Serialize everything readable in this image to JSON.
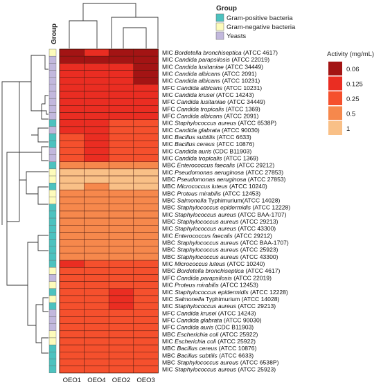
{
  "chart_data": {
    "type": "heatmap",
    "title": "",
    "columns": [
      "OEO1",
      "OEO4",
      "OEO2",
      "OEO3"
    ],
    "group_header": "Group",
    "groups": [
      {
        "name": "Gram-positive bacteria",
        "color": "#4dc2bf"
      },
      {
        "name": "Gram-negative bacteria",
        "color": "#fdfbbb"
      },
      {
        "name": "Yeasts",
        "color": "#c2b8dd"
      }
    ],
    "legend": {
      "title": "Activity (mg/mL)",
      "levels": [
        {
          "label": "0.06",
          "value": 0.06,
          "color": "#a31414"
        },
        {
          "label": "0.125",
          "value": 0.125,
          "color": "#ea2d22"
        },
        {
          "label": "0.25",
          "value": 0.25,
          "color": "#f5502d"
        },
        {
          "label": "0.5",
          "value": 0.5,
          "color": "#f6884c"
        },
        {
          "label": "1",
          "value": 1,
          "color": "#f9c087"
        }
      ]
    },
    "rows": [
      {
        "prefix": "MIC",
        "species": "Bordetella bronchiseptica",
        "strain": "(ATCC 4617)",
        "group": "Gram-negative bacteria",
        "values": [
          0.06,
          0.125,
          0.06,
          0.06
        ]
      },
      {
        "prefix": "MIC",
        "species": "Candida parapsilosis",
        "strain": "(ATCC 22019)",
        "group": "Yeasts",
        "values": [
          0.06,
          0.06,
          0.06,
          0.06
        ]
      },
      {
        "prefix": "MIC",
        "species": "Candida lusitaniae",
        "strain": "(ATCC 34449)",
        "group": "Yeasts",
        "values": [
          0.125,
          0.125,
          0.125,
          0.06
        ]
      },
      {
        "prefix": "MIC",
        "species": "Candida albicans",
        "strain": "(ATCC 2091)",
        "group": "Yeasts",
        "values": [
          0.125,
          0.125,
          0.125,
          0.06
        ]
      },
      {
        "prefix": "MIC",
        "species": "Candida albicans",
        "strain": "(ATCC 10231)",
        "group": "Yeasts",
        "values": [
          0.125,
          0.125,
          0.125,
          0.06
        ]
      },
      {
        "prefix": "MFC",
        "species": "Candida albicans",
        "strain": "(ATCC 10231)",
        "group": "Yeasts",
        "values": [
          0.125,
          0.125,
          0.125,
          0.125
        ]
      },
      {
        "prefix": "MIC",
        "species": "Candida krusei",
        "strain": "(ATCC 14243)",
        "group": "Yeasts",
        "values": [
          0.125,
          0.125,
          0.125,
          0.125
        ]
      },
      {
        "prefix": "MFC",
        "species": "Candida lusitaniae",
        "strain": "(ATCC 34449)",
        "group": "Yeasts",
        "values": [
          0.125,
          0.125,
          0.125,
          0.125
        ]
      },
      {
        "prefix": "MFC",
        "species": "Candida tropicalis",
        "strain": "(ATCC 1369)",
        "group": "Yeasts",
        "values": [
          0.125,
          0.125,
          0.125,
          0.125
        ]
      },
      {
        "prefix": "MFC",
        "species": "Candida albicans",
        "strain": "(ATCC 2091)",
        "group": "Yeasts",
        "values": [
          0.125,
          0.125,
          0.125,
          0.125
        ]
      },
      {
        "prefix": "MIC",
        "species": "Staphylococcus aureus",
        "strain": "(ATCC 6538P)",
        "group": "Gram-positive bacteria",
        "values": [
          0.125,
          0.125,
          0.25,
          0.25
        ]
      },
      {
        "prefix": "MIC",
        "species": "Candida glabrata",
        "strain": "(ATCC 90030)",
        "group": "Yeasts",
        "values": [
          0.125,
          0.125,
          0.25,
          0.25
        ]
      },
      {
        "prefix": "MIC",
        "species": "Bacillus subtilis",
        "strain": "(ATCC 6633)",
        "group": "Gram-positive bacteria",
        "values": [
          0.25,
          0.125,
          0.25,
          0.25
        ]
      },
      {
        "prefix": "MIC",
        "species": "Bacillus cereus",
        "strain": "(ATCC 10876)",
        "group": "Gram-positive bacteria",
        "values": [
          0.25,
          0.125,
          0.25,
          0.25
        ]
      },
      {
        "prefix": "MIC",
        "species": "Candida auris",
        "strain": "(CDC B11903)",
        "group": "Yeasts",
        "values": [
          0.25,
          0.125,
          0.25,
          0.25
        ]
      },
      {
        "prefix": "MIC",
        "species": "Candida tropicalis",
        "strain": "(ATCC 1369)",
        "group": "Yeasts",
        "values": [
          0.25,
          0.125,
          0.25,
          0.25
        ]
      },
      {
        "prefix": "MBC",
        "species": "Enterococcus faecalis",
        "strain": "(ATCC 29212)",
        "group": "Gram-positive bacteria",
        "values": [
          0.5,
          0.5,
          0.5,
          0.5
        ]
      },
      {
        "prefix": "MIC",
        "species": "Pseudomonas aeruginosa",
        "strain": "(ATCC 27853)",
        "group": "Gram-negative bacteria",
        "values": [
          1,
          1,
          1,
          1
        ]
      },
      {
        "prefix": "MBC",
        "species": "Pseudomonas aeruginosa",
        "strain": "(ATCC 27853)",
        "group": "Gram-negative bacteria",
        "values": [
          1,
          1,
          1,
          1
        ]
      },
      {
        "prefix": "MBC",
        "species": "Micrococcus luteus",
        "strain": "(ATCC 10240)",
        "group": "Gram-positive bacteria",
        "values": [
          1,
          0.5,
          1,
          1
        ]
      },
      {
        "prefix": "MBC",
        "species": "Proteus mirabilis",
        "strain": "(ATCC 12453)",
        "group": "Gram-negative bacteria",
        "values": [
          0.5,
          0.5,
          0.5,
          0.5
        ]
      },
      {
        "prefix": "MBC",
        "species": "Salmonella",
        "strain": "Typhimurium(ATCC 14028)",
        "group": "Gram-negative bacteria",
        "values": [
          0.5,
          0.5,
          0.5,
          0.5
        ]
      },
      {
        "prefix": "MBC",
        "species": "Staphylococcus epidermidis",
        "strain": "(ATCC 12228)",
        "group": "Gram-positive bacteria",
        "values": [
          0.5,
          0.5,
          0.5,
          0.5
        ]
      },
      {
        "prefix": "MIC",
        "species": "Staphylococcus aureus",
        "strain": "(ATCC BAA-1707)",
        "group": "Gram-positive bacteria",
        "values": [
          0.5,
          0.5,
          0.5,
          0.5
        ]
      },
      {
        "prefix": "MBC",
        "species": "Staphylococcus aureus",
        "strain": "(ATCC 29213)",
        "group": "Gram-positive bacteria",
        "values": [
          0.5,
          0.5,
          0.5,
          0.5
        ]
      },
      {
        "prefix": "MIC",
        "species": "Staphylococcus aureus",
        "strain": "(ATCC 43300)",
        "group": "Gram-positive bacteria",
        "values": [
          0.5,
          0.5,
          0.5,
          0.5
        ]
      },
      {
        "prefix": "MIC",
        "species": "Enterococcus faecalis",
        "strain": "(ATCC 29212)",
        "group": "Gram-positive bacteria",
        "values": [
          0.5,
          0.5,
          0.5,
          0.5
        ]
      },
      {
        "prefix": "MBC",
        "species": "Staphylococcus aureus",
        "strain": "(ATCC BAA-1707)",
        "group": "Gram-positive bacteria",
        "values": [
          0.5,
          0.5,
          0.5,
          0.5
        ]
      },
      {
        "prefix": "MBC",
        "species": "Staphylococcus aureus",
        "strain": "(ATCC 25923)",
        "group": "Gram-positive bacteria",
        "values": [
          0.5,
          0.5,
          0.5,
          0.5
        ]
      },
      {
        "prefix": "MBC",
        "species": "Staphylococcus aureus",
        "strain": "(ATCC 43300)",
        "group": "Gram-positive bacteria",
        "values": [
          0.5,
          0.5,
          0.5,
          0.5
        ]
      },
      {
        "prefix": "MIC",
        "species": "Micrococcus luteus",
        "strain": "(ATCC 10240)",
        "group": "Gram-positive bacteria",
        "values": [
          0.125,
          0.25,
          0.25,
          0.25
        ]
      },
      {
        "prefix": "MBC",
        "species": "Bordetella bronchiseptica",
        "strain": "(ATCC 4617)",
        "group": "Gram-negative bacteria",
        "values": [
          0.25,
          0.25,
          0.25,
          0.25
        ]
      },
      {
        "prefix": "MFC",
        "species": "Candida parapsilosis",
        "strain": "(ATCC 22019)",
        "group": "Yeasts",
        "values": [
          0.25,
          0.25,
          0.25,
          0.25
        ]
      },
      {
        "prefix": "MIC",
        "species": "Proteus mirabilis",
        "strain": "(ATCC 12453)",
        "group": "Gram-negative bacteria",
        "values": [
          0.25,
          0.25,
          0.25,
          0.25
        ]
      },
      {
        "prefix": "MIC",
        "species": "Staphylococcus epidermidis",
        "strain": "(ATCC 12228)",
        "group": "Gram-positive bacteria",
        "values": [
          0.25,
          0.25,
          0.125,
          0.25
        ]
      },
      {
        "prefix": "MIC",
        "species": "Salmonella",
        "strain": "Typhimurium (ATCC 14028)",
        "group": "Gram-negative bacteria",
        "values": [
          0.25,
          0.25,
          0.125,
          0.25
        ]
      },
      {
        "prefix": "MIC",
        "species": "Staphylococcus aureus",
        "strain": "(ATCC 29213)",
        "group": "Gram-positive bacteria",
        "values": [
          0.25,
          0.25,
          0.125,
          0.25
        ]
      },
      {
        "prefix": "MFC",
        "species": "Candida krusei",
        "strain": "(ATCC 14243)",
        "group": "Yeasts",
        "values": [
          0.25,
          0.25,
          0.25,
          0.25
        ]
      },
      {
        "prefix": "MFC",
        "species": "Candida glabrata",
        "strain": "(ATCC 90030)",
        "group": "Yeasts",
        "values": [
          0.25,
          0.25,
          0.25,
          0.25
        ]
      },
      {
        "prefix": "MFC",
        "species": "Candida auris",
        "strain": "(CDC B11903)",
        "group": "Yeasts",
        "values": [
          0.25,
          0.25,
          0.25,
          0.25
        ]
      },
      {
        "prefix": "MBC",
        "species": "Escherichia coli",
        "strain": "(ATCC 25922)",
        "group": "Gram-negative bacteria",
        "values": [
          0.25,
          0.25,
          0.25,
          0.25
        ]
      },
      {
        "prefix": "MIC",
        "species": "Escherichia coli",
        "strain": "(ATCC 25922)",
        "group": "Gram-negative bacteria",
        "values": [
          0.25,
          0.25,
          0.25,
          0.25
        ]
      },
      {
        "prefix": "MBC",
        "species": "Bacillus cereus",
        "strain": "(ATCC 10876)",
        "group": "Gram-positive bacteria",
        "values": [
          0.25,
          0.25,
          0.25,
          0.25
        ]
      },
      {
        "prefix": "MBC",
        "species": "Bacillus subtilis",
        "strain": "(ATCC 6633)",
        "group": "Gram-positive bacteria",
        "values": [
          0.25,
          0.25,
          0.25,
          0.25
        ]
      },
      {
        "prefix": "MBC",
        "species": "Staphylococcus aureus",
        "strain": "(ATCC 6538P)",
        "group": "Gram-positive bacteria",
        "values": [
          0.25,
          0.25,
          0.25,
          0.25
        ]
      },
      {
        "prefix": "MIC",
        "species": "Staphylococcus aureus",
        "strain": "(ATCC 25923)",
        "group": "Gram-positive bacteria",
        "values": [
          0.25,
          0.25,
          0.25,
          0.25
        ]
      }
    ]
  }
}
